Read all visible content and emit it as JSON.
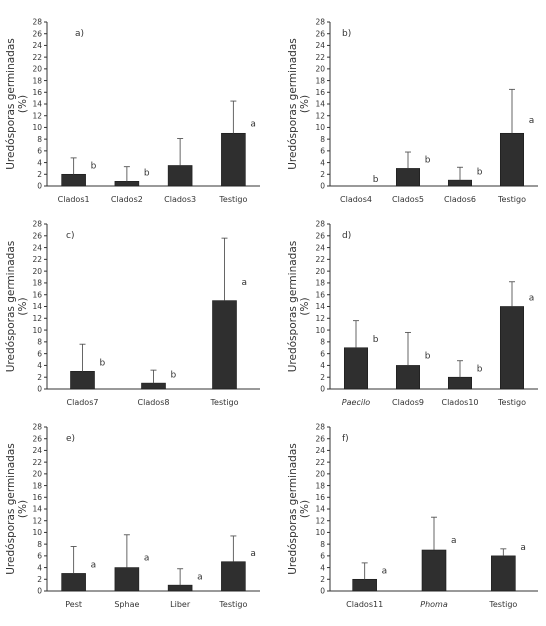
{
  "y_axis_label_line1": "Uredósporas germinadas",
  "y_axis_label_line2": "(%)",
  "chart_data": [
    {
      "type": "bar",
      "panel": "a)",
      "ylim": [
        0,
        28
      ],
      "yticks": [
        0,
        2,
        4,
        6,
        8,
        10,
        12,
        14,
        16,
        18,
        20,
        22,
        24,
        26,
        28
      ],
      "categories": [
        "Clados1",
        "Clados2",
        "Clados3",
        "Testigo"
      ],
      "values": [
        2.0,
        0.8,
        3.5,
        9.0
      ],
      "errors": [
        2.8,
        2.5,
        4.6,
        5.5
      ],
      "letters": [
        "b",
        "b",
        "",
        "a"
      ],
      "italic": [
        false,
        false,
        false,
        false
      ],
      "ylabel": "Uredósporas germinadas (%)"
    },
    {
      "type": "bar",
      "panel": "b)",
      "ylim": [
        0,
        28
      ],
      "yticks": [
        0,
        2,
        4,
        6,
        8,
        10,
        12,
        14,
        16,
        18,
        20,
        22,
        24,
        26,
        28
      ],
      "categories": [
        "Clados4",
        "Clados5",
        "Clados6",
        "Testigo"
      ],
      "values": [
        0,
        3.0,
        1.0,
        9.0
      ],
      "errors": [
        0,
        2.8,
        2.2,
        7.5
      ],
      "letters": [
        "b",
        "b",
        "b",
        "a"
      ],
      "italic": [
        false,
        false,
        false,
        false
      ],
      "ylabel": "Uredósporas germinadas (%)"
    },
    {
      "type": "bar",
      "panel": "c)",
      "ylim": [
        0,
        28
      ],
      "yticks": [
        0,
        2,
        4,
        6,
        8,
        10,
        12,
        14,
        16,
        18,
        20,
        22,
        24,
        26,
        28
      ],
      "categories": [
        "Clados7",
        "Clados8",
        "Testigo"
      ],
      "values": [
        3.0,
        1.0,
        15.0
      ],
      "errors": [
        4.6,
        2.2,
        10.6
      ],
      "letters": [
        "b",
        "b",
        "a"
      ],
      "italic": [
        false,
        false,
        false
      ],
      "ylabel": "Uredósporas germinadas (%)"
    },
    {
      "type": "bar",
      "panel": "d)",
      "ylim": [
        0,
        28
      ],
      "yticks": [
        0,
        2,
        4,
        6,
        8,
        10,
        12,
        14,
        16,
        18,
        20,
        22,
        24,
        26,
        28
      ],
      "categories": [
        "Paecilo",
        "Clados9",
        "Clados10",
        "Testigo"
      ],
      "values": [
        7.0,
        4.0,
        2.0,
        14.0
      ],
      "errors": [
        4.6,
        5.6,
        2.8,
        4.2
      ],
      "letters": [
        "b",
        "b",
        "b",
        "a"
      ],
      "italic": [
        true,
        false,
        false,
        false
      ],
      "ylabel": "Uredósporas germinadas (%)"
    },
    {
      "type": "bar",
      "panel": "e)",
      "ylim": [
        0,
        28
      ],
      "yticks": [
        0,
        2,
        4,
        6,
        8,
        10,
        12,
        14,
        16,
        18,
        20,
        22,
        24,
        26,
        28
      ],
      "categories": [
        "Pest",
        "Sphae",
        "Liber",
        "Testigo"
      ],
      "values": [
        3.0,
        4.0,
        1.0,
        5.0
      ],
      "errors": [
        4.6,
        5.6,
        2.8,
        4.4
      ],
      "letters": [
        "a",
        "a",
        "a",
        "a"
      ],
      "italic": [
        false,
        false,
        false,
        false
      ],
      "ylabel": "Uredósporas germinadas (%)"
    },
    {
      "type": "bar",
      "panel": "f)",
      "ylim": [
        0,
        28
      ],
      "yticks": [
        0,
        2,
        4,
        6,
        8,
        10,
        12,
        14,
        16,
        18,
        20,
        22,
        24,
        26,
        28
      ],
      "categories": [
        "Clados11",
        "Phoma",
        "Testigo"
      ],
      "values": [
        2.0,
        7.0,
        6.0
      ],
      "errors": [
        2.8,
        5.6,
        1.2
      ],
      "letters": [
        "a",
        "a",
        "a"
      ],
      "italic": [
        false,
        true,
        false
      ],
      "ylabel": "Uredósporas germinadas (%)"
    }
  ]
}
